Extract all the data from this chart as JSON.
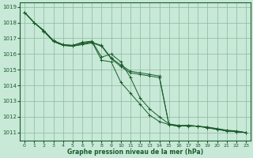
{
  "title": "Graphe pression niveau de la mer (hPa)",
  "background_color": "#c8e8d8",
  "plot_bg_color": "#c8e8d8",
  "grid_color": "#88bb99",
  "line_color": "#1a5c2a",
  "marker_color": "#1a5c2a",
  "x_labels": [
    0,
    1,
    2,
    3,
    4,
    5,
    6,
    7,
    8,
    9,
    10,
    11,
    12,
    13,
    14,
    15,
    16,
    17,
    18,
    19,
    20,
    21,
    22,
    23
  ],
  "ylim": [
    1010.5,
    1019.3
  ],
  "yticks": [
    1011,
    1012,
    1013,
    1014,
    1015,
    1016,
    1017,
    1018,
    1019
  ],
  "series": [
    [
      1018.65,
      1018.0,
      1017.45,
      1016.8,
      1016.55,
      1016.5,
      1016.6,
      1016.7,
      1016.5,
      1015.7,
      1015.2,
      1014.8,
      1014.7,
      1014.6,
      1014.5,
      1011.5,
      1011.4,
      1011.45,
      1011.4,
      1011.3,
      1011.2,
      1011.1,
      1011.05,
      1011.0
    ],
    [
      1018.65,
      1018.0,
      1017.45,
      1016.8,
      1016.55,
      1016.5,
      1016.65,
      1016.75,
      1016.55,
      1015.75,
      1015.3,
      1014.9,
      1014.8,
      1014.7,
      1014.6,
      1011.5,
      1011.4,
      1011.45,
      1011.4,
      1011.3,
      1011.2,
      1011.1,
      1011.05,
      1011.0
    ],
    [
      1018.65,
      1018.0,
      1017.5,
      1016.85,
      1016.6,
      1016.55,
      1016.75,
      1016.82,
      1015.8,
      1016.0,
      1015.5,
      1014.5,
      1013.2,
      1012.5,
      1012.0,
      1011.55,
      1011.45,
      1011.45,
      1011.4,
      1011.35,
      1011.25,
      1011.15,
      1011.1,
      1011.0
    ],
    [
      1018.65,
      1018.0,
      1017.5,
      1016.85,
      1016.6,
      1016.55,
      1016.7,
      1016.78,
      1015.6,
      1015.5,
      1014.2,
      1013.5,
      1012.8,
      1012.1,
      1011.7,
      1011.5,
      1011.45,
      1011.4,
      1011.4,
      1011.33,
      1011.22,
      1011.12,
      1011.05,
      1011.0
    ]
  ]
}
